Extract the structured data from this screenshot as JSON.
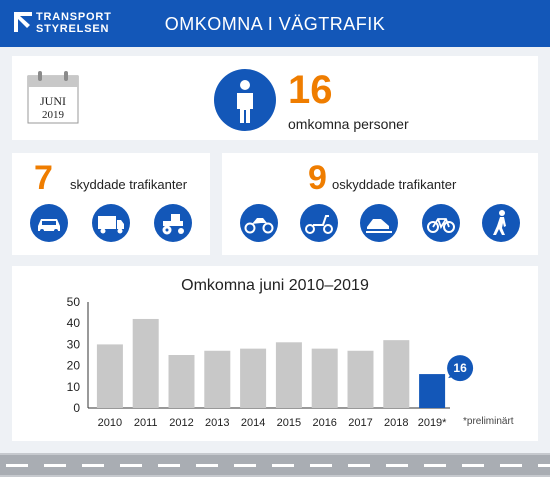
{
  "header": {
    "logo_line1": "TRANSPORT",
    "logo_line2": "STYRELSEN",
    "title": "OMKOMNA I VÄGTRAFIK",
    "bg_color": "#1357b8"
  },
  "summary": {
    "month": "JUNI",
    "year": "2019",
    "total": "16",
    "total_label": "omkomna personer",
    "accent_color": "#ef7d00"
  },
  "protected": {
    "count": "7",
    "label": "skyddade trafikanter",
    "icons": [
      "car-icon",
      "truck-icon",
      "tractor-icon"
    ]
  },
  "unprotected": {
    "count": "9",
    "label": "oskyddade trafikanter",
    "icons": [
      "motorcycle-icon",
      "moped-icon",
      "snowmobile-icon",
      "bicycle-icon",
      "pedestrian-icon"
    ]
  },
  "chart_data": {
    "type": "bar",
    "title": "Omkomna juni 2010–2019",
    "categories": [
      "2010",
      "2011",
      "2012",
      "2013",
      "2014",
      "2015",
      "2016",
      "2017",
      "2018",
      "2019*"
    ],
    "values": [
      30,
      42,
      25,
      27,
      28,
      31,
      28,
      27,
      32,
      16
    ],
    "ylim": [
      0,
      50
    ],
    "yticks": [
      "0",
      "10",
      "20",
      "30",
      "40",
      "50"
    ],
    "bar_color": "#c8c8c8",
    "highlight_color": "#1357b8",
    "highlight_label": "16",
    "footnote": "*preliminärt",
    "grid": false
  }
}
